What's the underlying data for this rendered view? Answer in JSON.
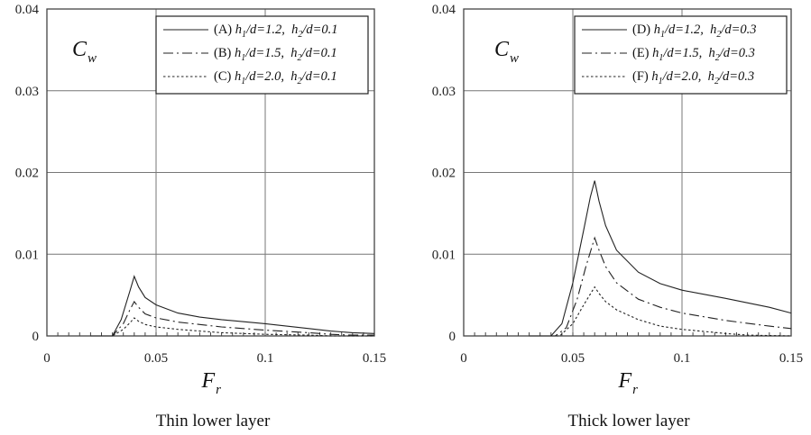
{
  "chart_data": [
    {
      "type": "line",
      "caption": "Thin lower layer",
      "ylabel": "C",
      "ylabel_sub": "w",
      "xlabel": "F",
      "xlabel_sub": "r",
      "xlim": [
        0,
        0.15
      ],
      "ylim": [
        0,
        0.04
      ],
      "xticks": [
        {
          "v": 0,
          "label": "0"
        },
        {
          "v": 0.05,
          "label": "0.05"
        },
        {
          "v": 0.1,
          "label": "0.1"
        },
        {
          "v": 0.15,
          "label": "0.15"
        }
      ],
      "yticks": [
        {
          "v": 0,
          "label": "0"
        },
        {
          "v": 0.01,
          "label": "0.01"
        },
        {
          "v": 0.02,
          "label": "0.02"
        },
        {
          "v": 0.03,
          "label": "0.03"
        },
        {
          "v": 0.04,
          "label": "0.04"
        }
      ],
      "grid": true,
      "legend_position": "top-right",
      "series": [
        {
          "name_prefix": "(A) ",
          "name": "h1/d=1.2,  h2/d=0.1",
          "h1": "1.2",
          "h2": "0.1",
          "style": "solid",
          "x": [
            0.02,
            0.03,
            0.034,
            0.038,
            0.04,
            0.042,
            0.045,
            0.05,
            0.06,
            0.07,
            0.08,
            0.1,
            0.12,
            0.13,
            0.14,
            0.15
          ],
          "y": [
            0,
            0,
            0.002,
            0.0055,
            0.0073,
            0.006,
            0.0047,
            0.0038,
            0.0028,
            0.0023,
            0.002,
            0.0015,
            0.0009,
            0.0006,
            0.0004,
            0.0003
          ]
        },
        {
          "name_prefix": "(B) ",
          "name": "h1/d=1.5,  h2/d=0.1",
          "h1": "1.5",
          "h2": "0.1",
          "style": "dashdot",
          "x": [
            0.02,
            0.03,
            0.035,
            0.038,
            0.04,
            0.042,
            0.045,
            0.05,
            0.06,
            0.07,
            0.08,
            0.1,
            0.12,
            0.13,
            0.14,
            0.15
          ],
          "y": [
            0,
            0,
            0.0015,
            0.0032,
            0.0042,
            0.0035,
            0.0027,
            0.0022,
            0.0017,
            0.0014,
            0.0011,
            0.0007,
            0.0004,
            0.0002,
            0.0001,
            0.0001
          ]
        },
        {
          "name_prefix": "(C) ",
          "name": "h1/d=2.0,  h2/d=0.1",
          "h1": "2.0",
          "h2": "0.1",
          "style": "dotted",
          "x": [
            0.02,
            0.03,
            0.035,
            0.038,
            0.04,
            0.042,
            0.045,
            0.05,
            0.06,
            0.07,
            0.08,
            0.1,
            0.12,
            0.13,
            0.15
          ],
          "y": [
            0,
            0,
            0.0008,
            0.0016,
            0.0022,
            0.0018,
            0.0014,
            0.0011,
            0.0008,
            0.0006,
            0.0004,
            0.0002,
            0.0001,
            0,
            0
          ]
        }
      ]
    },
    {
      "type": "line",
      "caption": "Thick lower layer",
      "ylabel": "C",
      "ylabel_sub": "w",
      "xlabel": "F",
      "xlabel_sub": "r",
      "xlim": [
        0,
        0.15
      ],
      "ylim": [
        0,
        0.04
      ],
      "xticks": [
        {
          "v": 0,
          "label": "0"
        },
        {
          "v": 0.05,
          "label": "0.05"
        },
        {
          "v": 0.1,
          "label": "0.1"
        },
        {
          "v": 0.15,
          "label": "0.15"
        }
      ],
      "yticks": [
        {
          "v": 0,
          "label": "0"
        },
        {
          "v": 0.01,
          "label": "0.01"
        },
        {
          "v": 0.02,
          "label": "0.02"
        },
        {
          "v": 0.03,
          "label": "0.03"
        },
        {
          "v": 0.04,
          "label": "0.04"
        }
      ],
      "grid": true,
      "legend_position": "top-right",
      "series": [
        {
          "name_prefix": "(D) ",
          "name": "h1/d=1.2,  h2/d=0.3",
          "h1": "1.2",
          "h2": "0.3",
          "style": "solid",
          "x": [
            0.03,
            0.04,
            0.045,
            0.05,
            0.055,
            0.058,
            0.06,
            0.062,
            0.065,
            0.07,
            0.08,
            0.09,
            0.1,
            0.12,
            0.14,
            0.15
          ],
          "y": [
            0,
            0,
            0.0015,
            0.0065,
            0.013,
            0.017,
            0.019,
            0.0165,
            0.0135,
            0.0105,
            0.0078,
            0.0064,
            0.0056,
            0.0046,
            0.0035,
            0.0028
          ]
        },
        {
          "name_prefix": "(E) ",
          "name": "h1/d=1.5,  h2/d=0.3",
          "h1": "1.5",
          "h2": "0.3",
          "style": "dashdot",
          "x": [
            0.03,
            0.042,
            0.047,
            0.052,
            0.056,
            0.06,
            0.062,
            0.065,
            0.07,
            0.08,
            0.09,
            0.1,
            0.12,
            0.14,
            0.15
          ],
          "y": [
            0,
            0,
            0.001,
            0.0045,
            0.0085,
            0.012,
            0.0105,
            0.0085,
            0.0065,
            0.0045,
            0.0035,
            0.0028,
            0.0019,
            0.0012,
            0.0009
          ]
        },
        {
          "name_prefix": "(F) ",
          "name": "h1/d=2.0,  h2/d=0.3",
          "h1": "2.0",
          "h2": "0.3",
          "style": "dotted",
          "x": [
            0.03,
            0.044,
            0.05,
            0.055,
            0.06,
            0.062,
            0.065,
            0.07,
            0.08,
            0.09,
            0.1,
            0.12,
            0.13,
            0.15
          ],
          "y": [
            0,
            0,
            0.0015,
            0.0038,
            0.006,
            0.0052,
            0.0042,
            0.0032,
            0.002,
            0.0012,
            0.0008,
            0.0003,
            0.0001,
            0
          ]
        }
      ]
    }
  ]
}
